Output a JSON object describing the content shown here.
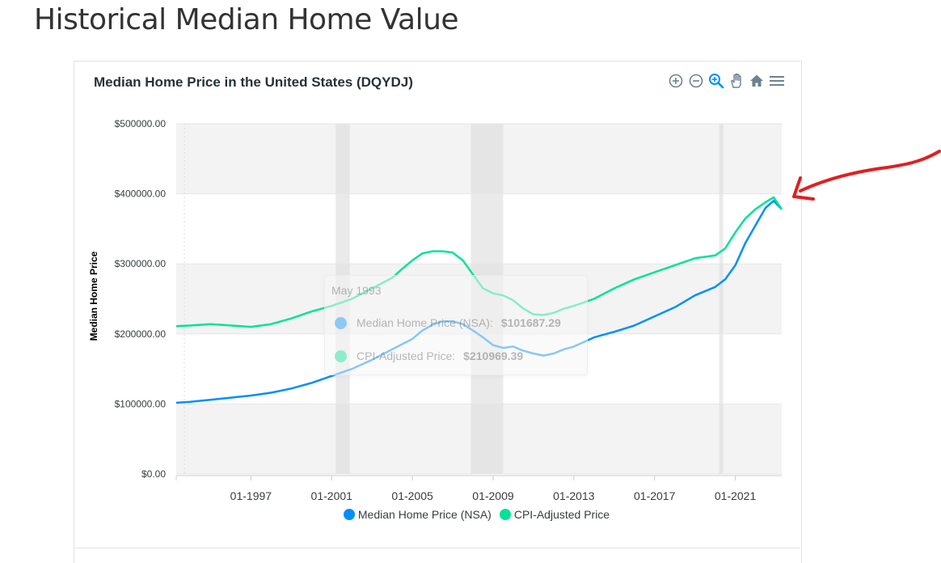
{
  "page": {
    "heading": "Historical Median Home Value"
  },
  "chart_title": "Median Home Price in the United States (DQYDJ)",
  "toolbar": [
    {
      "name": "zoom-in-icon",
      "label": "Zoom In"
    },
    {
      "name": "zoom-out-icon",
      "label": "Zoom Out"
    },
    {
      "name": "selection-zoom-icon",
      "label": "Selection Zoom"
    },
    {
      "name": "pan-icon",
      "label": "Panning"
    },
    {
      "name": "reset-zoom-icon",
      "label": "Reset Zoom"
    },
    {
      "name": "menu-icon",
      "label": "Menu"
    }
  ],
  "tooltip": {
    "title": "May 1993",
    "rows": [
      {
        "label": "Median Home Price (NSA):",
        "value": "$101687.29",
        "color": "#008ffb"
      },
      {
        "label": "CPI-Adjusted Price:",
        "value": "$210969.39",
        "color": "#00e396"
      }
    ]
  },
  "colors": {
    "nsa": "#008ffb",
    "cpi": "#00e396",
    "band": "#dcdcdc",
    "annotation_arrow": "#e02020"
  },
  "chart_data": {
    "type": "line",
    "title": "Median Home Price in the United States (DQYDJ)",
    "xlabel": "",
    "ylabel": "Median Home Price",
    "x_range": [
      1993.3,
      2023.3
    ],
    "ylim": [
      0,
      500000
    ],
    "y_ticks": [
      "$0.00",
      "$100000.00",
      "$200000.00",
      "$300000.00",
      "$400000.00",
      "$500000.00"
    ],
    "y_tick_values": [
      0,
      100000,
      200000,
      300000,
      400000,
      500000
    ],
    "x_ticks": [
      "01-1997",
      "01-2001",
      "01-2005",
      "01-2009",
      "01-2013",
      "01-2017",
      "01-2021"
    ],
    "x_tick_values": [
      1997,
      2001,
      2005,
      2009,
      2013,
      2017,
      2021
    ],
    "recession_bands": [
      [
        2001.2,
        2001.9
      ],
      [
        2007.9,
        2009.5
      ],
      [
        2020.2,
        2020.4
      ]
    ],
    "grid": true,
    "legend_position": "bottom-center",
    "series": [
      {
        "name": "Median Home Price (NSA)",
        "x": [
          1993.3,
          1994,
          1995,
          1996,
          1997,
          1998,
          1999,
          2000,
          2001,
          2002,
          2003,
          2004,
          2005,
          2005.5,
          2006,
          2006.5,
          2007,
          2007.5,
          2008,
          2008.5,
          2009,
          2009.5,
          2010,
          2010.5,
          2011,
          2011.5,
          2012,
          2012.5,
          2013,
          2014,
          2015,
          2016,
          2017,
          2018,
          2019,
          2020,
          2020.5,
          2021,
          2021.5,
          2022,
          2022.5,
          2022.9,
          2023.3
        ],
        "y": [
          101687,
          103000,
          106000,
          109000,
          112000,
          116000,
          122000,
          130000,
          140000,
          150000,
          163000,
          178000,
          193000,
          205000,
          213000,
          218000,
          218000,
          214000,
          205000,
          195000,
          184000,
          180000,
          182000,
          176000,
          172000,
          169000,
          172000,
          178000,
          182000,
          195000,
          203000,
          212000,
          225000,
          238000,
          255000,
          267000,
          278000,
          298000,
          330000,
          355000,
          380000,
          390000,
          378000
        ]
      },
      {
        "name": "CPI-Adjusted Price",
        "x": [
          1993.3,
          1994,
          1995,
          1996,
          1997,
          1998,
          1999,
          2000,
          2001,
          2002,
          2003,
          2004,
          2004.5,
          2005,
          2005.5,
          2006,
          2006.5,
          2007,
          2007.5,
          2008,
          2008.5,
          2009,
          2009.5,
          2010,
          2010.5,
          2011,
          2011.5,
          2012,
          2012.5,
          2013,
          2014,
          2015,
          2016,
          2017,
          2018,
          2019,
          2020,
          2020.5,
          2021,
          2021.5,
          2022,
          2022.5,
          2022.9,
          2023.3
        ],
        "y": [
          210969,
          212000,
          214000,
          212000,
          210000,
          214000,
          222000,
          232000,
          240000,
          250000,
          265000,
          280000,
          293000,
          305000,
          315000,
          318000,
          318000,
          316000,
          305000,
          285000,
          265000,
          258000,
          255000,
          248000,
          236000,
          228000,
          227000,
          230000,
          236000,
          240000,
          250000,
          265000,
          278000,
          288000,
          298000,
          308000,
          312000,
          322000,
          345000,
          365000,
          378000,
          388000,
          395000,
          378000
        ]
      }
    ]
  },
  "legend": [
    {
      "label": "Median Home Price (NSA)",
      "color": "#008ffb"
    },
    {
      "label": "CPI-Adjusted Price",
      "color": "#00e396"
    }
  ]
}
